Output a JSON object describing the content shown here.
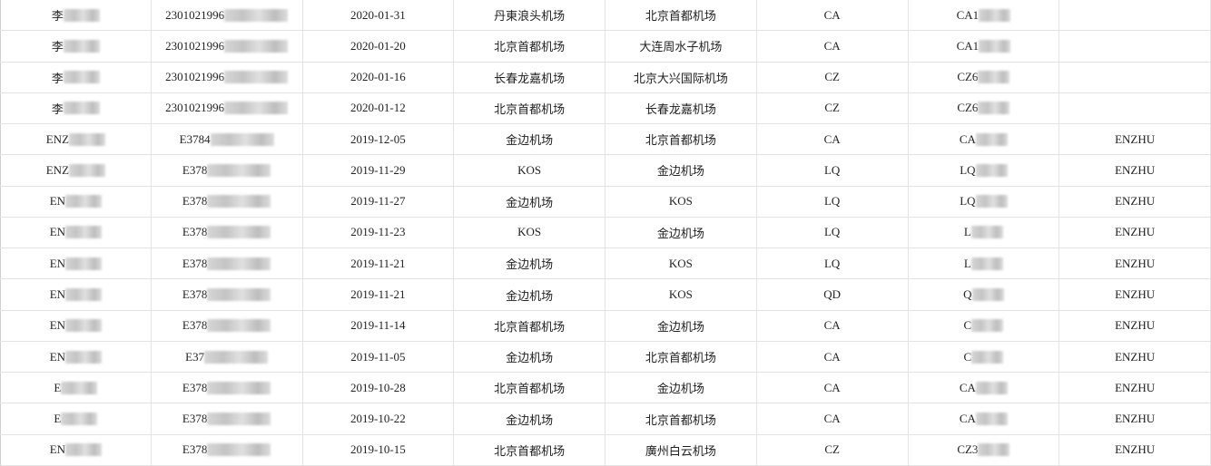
{
  "sheet": {
    "rows": [
      [
        "李",
        "2301021996",
        "2020-01-31",
        "丹東浪头机场",
        "北京首都机场",
        "CA",
        "CA1",
        ""
      ],
      [
        "李",
        "2301021996",
        "2020-01-20",
        "北京首都机场",
        "大连周水子机场",
        "CA",
        "CA1",
        ""
      ],
      [
        "李",
        "2301021996",
        "2020-01-16",
        "长春龙嘉机场",
        "北京大兴国际机场",
        "CZ",
        "CZ6",
        ""
      ],
      [
        "李",
        "2301021996",
        "2020-01-12",
        "北京首都机场",
        "长春龙嘉机场",
        "CZ",
        "CZ6",
        ""
      ],
      [
        "ENZ",
        "E3784",
        "2019-12-05",
        "金边机场",
        "北京首都机场",
        "CA",
        "CA",
        "ENZHU"
      ],
      [
        "ENZ",
        "E378",
        "2019-11-29",
        "KOS",
        "金边机场",
        "LQ",
        "LQ",
        "ENZHU"
      ],
      [
        "EN",
        "E378",
        "2019-11-27",
        "金边机场",
        "KOS",
        "LQ",
        "LQ",
        "ENZHU"
      ],
      [
        "EN",
        "E378",
        "2019-11-23",
        "KOS",
        "金边机场",
        "LQ",
        "L",
        "ENZHU"
      ],
      [
        "EN",
        "E378",
        "2019-11-21",
        "金边机场",
        "KOS",
        "LQ",
        "L",
        "ENZHU"
      ],
      [
        "EN",
        "E378",
        "2019-11-21",
        "金边机场",
        "KOS",
        "QD",
        "Q",
        "ENZHU"
      ],
      [
        "EN",
        "E378",
        "2019-11-14",
        "北京首都机场",
        "金边机场",
        "CA",
        "C",
        "ENZHU"
      ],
      [
        "EN",
        "E37",
        "2019-11-05",
        "金边机场",
        "北京首都机场",
        "CA",
        "C",
        "ENZHU"
      ],
      [
        "E",
        "E378",
        "2019-10-28",
        "北京首都机场",
        "金边机场",
        "CA",
        "CA",
        "ENZHU"
      ],
      [
        "E",
        "E378",
        "2019-10-22",
        "金边机场",
        "北京首都机场",
        "CA",
        "CA",
        "ENZHU"
      ],
      [
        "EN",
        "E378",
        "2019-10-15",
        "北京首都机场",
        "廣州白云机场",
        "CZ",
        "CZ3",
        "ENZHU"
      ]
    ]
  }
}
